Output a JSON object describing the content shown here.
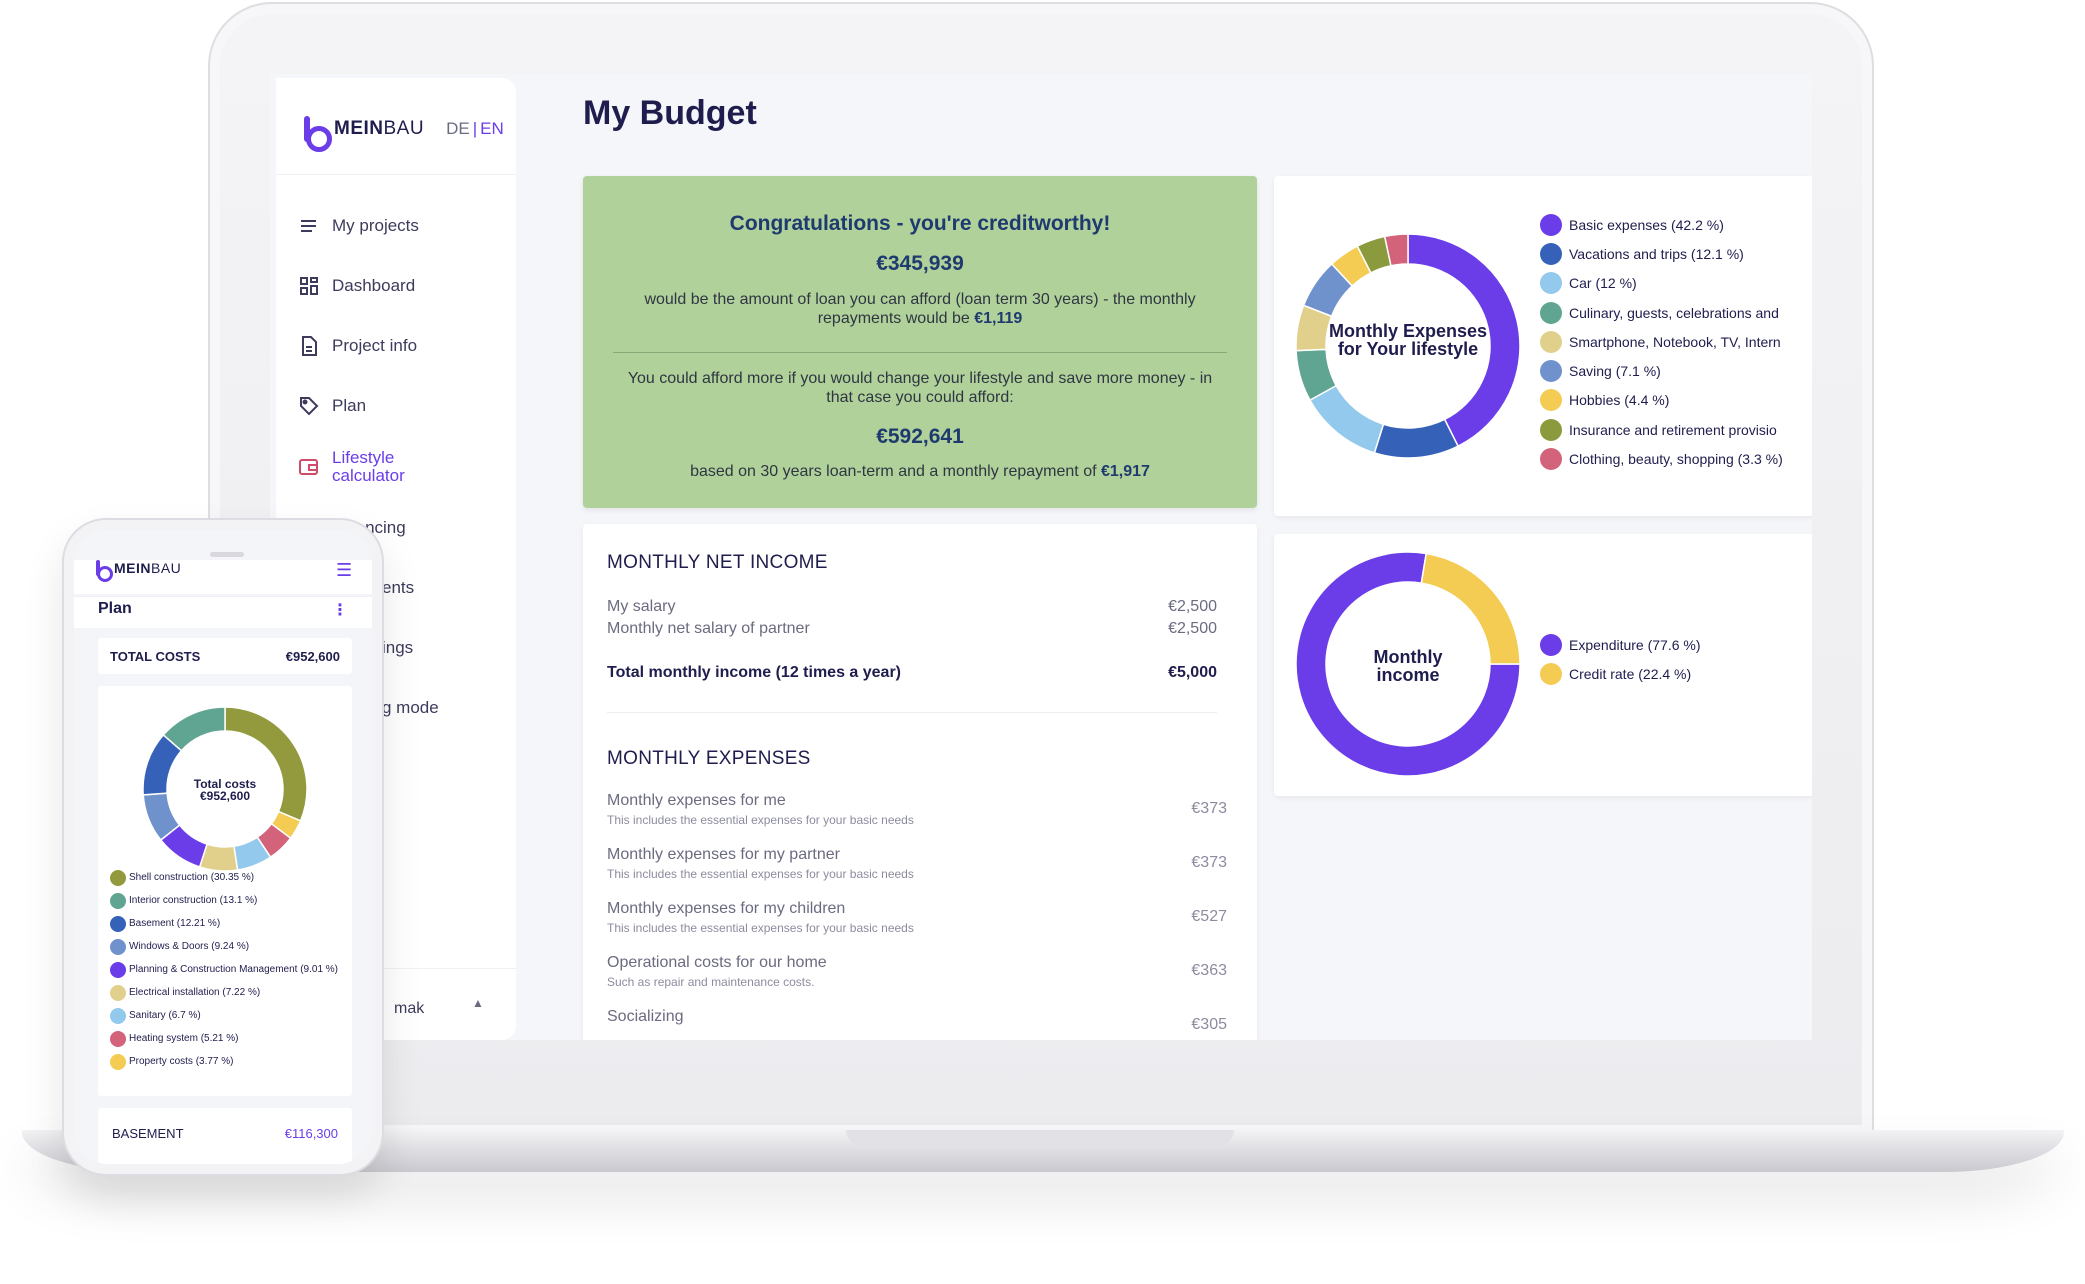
{
  "brand": {
    "name_bold": "MEIN",
    "name_light": "BAU",
    "lang_de": "DE",
    "lang_sep": "|",
    "lang_en": "EN",
    "accent": "#6a3de8"
  },
  "sidebar": {
    "items": [
      {
        "label": "My projects",
        "icon": "list-icon"
      },
      {
        "label": "Dashboard",
        "icon": "grid-icon"
      },
      {
        "label": "Project info",
        "icon": "document-icon"
      },
      {
        "label": "Plan",
        "icon": "tag-icon"
      },
      {
        "label": "Lifestyle calculator",
        "icon": "wallet-icon",
        "active": true
      },
      {
        "label": "Financing",
        "icon": "euro-icon"
      },
      {
        "label": "ents",
        "icon": ""
      },
      {
        "label": "ings",
        "icon": ""
      },
      {
        "label": "g mode",
        "icon": ""
      }
    ],
    "user_partial": "mak"
  },
  "main": {
    "title": "My Budget",
    "credit": {
      "title": "Congratulations - you're creditworthy!",
      "amount": "€345,939",
      "text_a": "would be the amount of loan you can afford (loan term 30 years) - the monthly repayments would be ",
      "repayment": "€1,119",
      "text_b": "You could afford more if you would change your lifestyle and save more money - in that case you could afford:",
      "amount2": "€592,641",
      "text_c": "based on 30 years loan-term and a monthly repayment of ",
      "repayment2": "€1,917"
    },
    "income": {
      "title": "MONTHLY NET INCOME",
      "rows": [
        {
          "label": "My salary",
          "value": "€2,500"
        },
        {
          "label": "Monthly net salary of partner",
          "value": "€2,500"
        }
      ],
      "total_label": "Total monthly income (12 times a year)",
      "total_value": "€5,000"
    },
    "expenses": {
      "title": "MONTHLY EXPENSES",
      "rows": [
        {
          "label": "Monthly expenses for me",
          "sub": "This includes the essential expenses for your basic needs",
          "value": "€373"
        },
        {
          "label": "Monthly expenses for my partner",
          "sub": "This includes the essential expenses for your basic needs",
          "value": "€373"
        },
        {
          "label": "Monthly expenses for my children",
          "sub": "This includes the essential expenses for your basic needs",
          "value": "€527"
        },
        {
          "label": "Operational costs for our home",
          "sub": "Such as repair and maintenance costs.",
          "value": "€363"
        },
        {
          "label": "Socializing",
          "sub": "",
          "value": "€305"
        }
      ]
    }
  },
  "chart_data": [
    {
      "type": "pie",
      "center_label": "Monthly Expenses for Your lifestyle",
      "legend": [
        "Basic expenses (42.2 %)",
        "Vacations and trips (12.1 %)",
        "Car (12 %)",
        "Culinary, guests, celebrations and",
        "Smartphone, Notebook, TV, Intern",
        "Saving (7.1 %)",
        "Hobbies (4.4 %)",
        "Insurance and retirement provisio",
        "Clothing, beauty, shopping (3.3 %)"
      ],
      "values": [
        42.2,
        12.1,
        12,
        7.3,
        6.5,
        7.1,
        4.4,
        4.1,
        3.3
      ],
      "colors": [
        "#6a3de8",
        "#3562b8",
        "#93c9ec",
        "#5fa591",
        "#e1d08c",
        "#7092cc",
        "#f4cc54",
        "#8c9a3e",
        "#d2637a"
      ],
      "start_angle_deg": 0
    },
    {
      "type": "pie",
      "center_label": "Monthly income",
      "legend": [
        "Expenditure (77.6 %)",
        "Credit rate (22.4 %)"
      ],
      "values": [
        77.6,
        22.4
      ],
      "colors": [
        "#6a3de8",
        "#f4cc54"
      ],
      "start_angle_deg": 90
    },
    {
      "type": "pie",
      "center_label": "Total costs",
      "center_value": "€952,600",
      "legend": [
        "Shell construction (30.35 %)",
        "Interior construction (13.1 %)",
        "Basement (12.21 %)",
        "Windows & Doors (9.24 %)",
        "Planning & Construction Management (9.01 %)",
        "Electrical installation (7.22 %)",
        "Sanitary (6.7 %)",
        "Heating system (5.21 %)",
        "Property costs (3.77 %)"
      ],
      "values": [
        30.35,
        13.1,
        12.21,
        9.24,
        9.01,
        7.22,
        6.7,
        5.21,
        3.77
      ],
      "colors": [
        "#939a3e",
        "#5fa591",
        "#3562b8",
        "#7092cc",
        "#6a3de8",
        "#e1d08c",
        "#93c9ec",
        "#d2637a",
        "#f4cc54"
      ],
      "order_clockwise_from_top": [
        0,
        8,
        7,
        6,
        5,
        4,
        3,
        2,
        1
      ]
    }
  ],
  "phone": {
    "menu_icon": "hamburger-icon",
    "title": "Plan",
    "total_label": "TOTAL COSTS",
    "total_value": "€952,600",
    "bottom_label": "BASEMENT",
    "bottom_value": "€116,300"
  }
}
